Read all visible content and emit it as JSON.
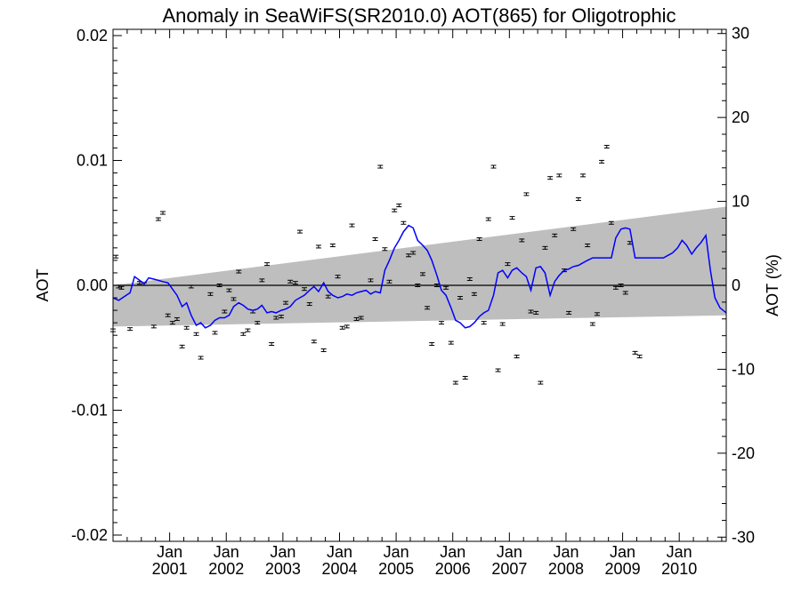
{
  "chart_data": {
    "type": "scatter",
    "title": "Anomaly in SeaWiFS(SR2010.0) AOT(865) for Oligotrophic",
    "ylabel_left": "AOT",
    "ylabel_right": "AOT (%)",
    "xlim": [
      2000.0,
      2010.83
    ],
    "ylim_left": [
      -0.0205,
      0.0205
    ],
    "ylim_right": [
      -30.5,
      30.5
    ],
    "x_ticks": [
      {
        "x": 2001.0,
        "month": "Jan",
        "year": "2001"
      },
      {
        "x": 2002.0,
        "month": "Jan",
        "year": "2002"
      },
      {
        "x": 2003.0,
        "month": "Jan",
        "year": "2003"
      },
      {
        "x": 2004.0,
        "month": "Jan",
        "year": "2004"
      },
      {
        "x": 2005.0,
        "month": "Jan",
        "year": "2005"
      },
      {
        "x": 2006.0,
        "month": "Jan",
        "year": "2006"
      },
      {
        "x": 2007.0,
        "month": "Jan",
        "year": "2007"
      },
      {
        "x": 2008.0,
        "month": "Jan",
        "year": "2008"
      },
      {
        "x": 2009.0,
        "month": "Jan",
        "year": "2009"
      },
      {
        "x": 2010.0,
        "month": "Jan",
        "year": "2010"
      }
    ],
    "y_ticks_left": [
      {
        "v": 0.02,
        "label": "0.02"
      },
      {
        "v": 0.01,
        "label": "0.01"
      },
      {
        "v": 0.0,
        "label": "0.00"
      },
      {
        "v": -0.01,
        "label": "-0.01"
      },
      {
        "v": -0.02,
        "label": "-0.02"
      }
    ],
    "y_ticks_right": [
      {
        "v": 30,
        "label": "30"
      },
      {
        "v": 20,
        "label": "20"
      },
      {
        "v": 10,
        "label": "10"
      },
      {
        "v": 0,
        "label": "0"
      },
      {
        "v": -10,
        "label": "-10"
      },
      {
        "v": -20,
        "label": "-20"
      },
      {
        "v": -30,
        "label": "-30"
      }
    ],
    "trend_band": {
      "x": [
        2000.0,
        2010.83
      ],
      "upper": [
        0.0,
        0.0063
      ],
      "lower": [
        -0.0033,
        -0.0024
      ]
    },
    "zero_line": 0.0,
    "smoothed_series": {
      "color": "#0000ff",
      "points": [
        [
          2000.0,
          -0.001
        ],
        [
          2000.1,
          -0.0012
        ],
        [
          2000.2,
          -0.0009
        ],
        [
          2000.3,
          -0.0006
        ],
        [
          2000.38,
          0.0007
        ],
        [
          2000.47,
          0.0004
        ],
        [
          2000.55,
          0.0001
        ],
        [
          2000.63,
          0.0006
        ],
        [
          2000.72,
          0.0005
        ],
        [
          2000.8,
          0.0004
        ],
        [
          2000.88,
          0.0003
        ],
        [
          2000.97,
          0.0002
        ],
        [
          2001.05,
          -0.0003
        ],
        [
          2001.13,
          -0.0008
        ],
        [
          2001.22,
          -0.0017
        ],
        [
          2001.3,
          -0.0014
        ],
        [
          2001.38,
          -0.0024
        ],
        [
          2001.47,
          -0.0032
        ],
        [
          2001.55,
          -0.003
        ],
        [
          2001.63,
          -0.0034
        ],
        [
          2001.72,
          -0.0032
        ],
        [
          2001.8,
          -0.0028
        ],
        [
          2001.88,
          -0.0026
        ],
        [
          2001.97,
          -0.0026
        ],
        [
          2002.05,
          -0.0024
        ],
        [
          2002.13,
          -0.0017
        ],
        [
          2002.22,
          -0.0014
        ],
        [
          2002.3,
          -0.0016
        ],
        [
          2002.38,
          -0.0019
        ],
        [
          2002.47,
          -0.002
        ],
        [
          2002.55,
          -0.0019
        ],
        [
          2002.63,
          -0.0016
        ],
        [
          2002.72,
          -0.0022
        ],
        [
          2002.8,
          -0.0021
        ],
        [
          2002.88,
          -0.0022
        ],
        [
          2002.97,
          -0.002
        ],
        [
          2003.05,
          -0.0019
        ],
        [
          2003.13,
          -0.0017
        ],
        [
          2003.22,
          -0.0012
        ],
        [
          2003.3,
          -0.001
        ],
        [
          2003.38,
          -0.0008
        ],
        [
          2003.47,
          -0.0004
        ],
        [
          2003.55,
          -0.0001
        ],
        [
          2003.63,
          -0.0005
        ],
        [
          2003.72,
          0.0002
        ],
        [
          2003.8,
          -0.0005
        ],
        [
          2003.88,
          -0.0008
        ],
        [
          2003.97,
          -0.001
        ],
        [
          2004.05,
          -0.0009
        ],
        [
          2004.13,
          -0.0007
        ],
        [
          2004.22,
          -0.0008
        ],
        [
          2004.3,
          -0.0006
        ],
        [
          2004.38,
          -0.0005
        ],
        [
          2004.47,
          -0.0004
        ],
        [
          2004.55,
          -0.0007
        ],
        [
          2004.63,
          -0.0005
        ],
        [
          2004.72,
          -0.0006
        ],
        [
          2004.8,
          0.0012
        ],
        [
          2004.88,
          0.002
        ],
        [
          2004.97,
          0.003
        ],
        [
          2005.05,
          0.0036
        ],
        [
          2005.13,
          0.0043
        ],
        [
          2005.22,
          0.0048
        ],
        [
          2005.3,
          0.0046
        ],
        [
          2005.38,
          0.0036
        ],
        [
          2005.47,
          0.0032
        ],
        [
          2005.55,
          0.0028
        ],
        [
          2005.63,
          0.002
        ],
        [
          2005.72,
          0.0008
        ],
        [
          2005.8,
          -0.0004
        ],
        [
          2005.88,
          -0.0008
        ],
        [
          2005.97,
          -0.0018
        ],
        [
          2006.05,
          -0.0028
        ],
        [
          2006.13,
          -0.003
        ],
        [
          2006.22,
          -0.0034
        ],
        [
          2006.3,
          -0.0033
        ],
        [
          2006.38,
          -0.003
        ],
        [
          2006.47,
          -0.0025
        ],
        [
          2006.55,
          -0.0022
        ],
        [
          2006.63,
          -0.002
        ],
        [
          2006.72,
          -0.0008
        ],
        [
          2006.8,
          0.001
        ],
        [
          2006.88,
          0.0012
        ],
        [
          2006.97,
          0.0006
        ],
        [
          2007.05,
          0.0012
        ],
        [
          2007.13,
          0.0014
        ],
        [
          2007.22,
          0.001
        ],
        [
          2007.3,
          0.0007
        ],
        [
          2007.38,
          -0.0004
        ],
        [
          2007.47,
          0.0014
        ],
        [
          2007.55,
          0.0015
        ],
        [
          2007.63,
          0.001
        ],
        [
          2007.72,
          -0.0008
        ],
        [
          2007.8,
          0.0003
        ],
        [
          2007.88,
          0.0008
        ],
        [
          2007.97,
          0.0012
        ],
        [
          2008.05,
          0.0013
        ],
        [
          2008.13,
          0.0015
        ],
        [
          2008.22,
          0.0016
        ],
        [
          2008.3,
          0.0018
        ],
        [
          2008.38,
          0.002
        ],
        [
          2008.47,
          0.0022
        ],
        [
          2008.55,
          0.0022
        ],
        [
          2008.63,
          0.0022
        ],
        [
          2008.72,
          0.0022
        ],
        [
          2008.8,
          0.0022
        ],
        [
          2008.88,
          0.0038
        ],
        [
          2008.97,
          0.0045
        ],
        [
          2009.05,
          0.0046
        ],
        [
          2009.13,
          0.0045
        ],
        [
          2009.22,
          0.0022
        ],
        [
          2009.3,
          0.0022
        ],
        [
          2009.38,
          0.0022
        ],
        [
          2009.47,
          0.0022
        ],
        [
          2009.55,
          0.0022
        ],
        [
          2009.63,
          0.0022
        ],
        [
          2009.72,
          0.0022
        ],
        [
          2009.8,
          0.0024
        ],
        [
          2009.88,
          0.0026
        ],
        [
          2009.97,
          0.003
        ],
        [
          2010.05,
          0.0036
        ],
        [
          2010.13,
          0.0032
        ],
        [
          2010.22,
          0.0025
        ],
        [
          2010.3,
          0.003
        ],
        [
          2010.38,
          0.0034
        ],
        [
          2010.47,
          0.004
        ],
        [
          2010.55,
          0.0012
        ],
        [
          2010.63,
          -0.001
        ],
        [
          2010.72,
          -0.0018
        ],
        [
          2010.83,
          -0.0022
        ]
      ]
    },
    "monthly_points": [
      [
        2000.0,
        -0.0036
      ],
      [
        2000.05,
        0.0023
      ],
      [
        2000.1,
        -0.0001
      ],
      [
        2000.15,
        -0.0002
      ],
      [
        2000.3,
        -0.0035
      ],
      [
        2000.47,
        0.0002
      ],
      [
        2000.55,
        0.0001
      ],
      [
        2000.8,
        0.0053
      ],
      [
        2000.88,
        0.0058
      ],
      [
        2000.72,
        -0.0033
      ],
      [
        2000.97,
        -0.0024
      ],
      [
        2001.05,
        -0.003
      ],
      [
        2001.13,
        -0.0027
      ],
      [
        2001.22,
        -0.0049
      ],
      [
        2001.3,
        -0.0034
      ],
      [
        2001.38,
        -0.0001
      ],
      [
        2001.47,
        -0.0039
      ],
      [
        2001.55,
        -0.0058
      ],
      [
        2001.72,
        -0.0007
      ],
      [
        2001.8,
        -0.0038
      ],
      [
        2001.88,
        0.0
      ],
      [
        2001.97,
        -0.0021
      ],
      [
        2002.05,
        -0.0004
      ],
      [
        2002.13,
        -0.0011
      ],
      [
        2002.22,
        0.0011
      ],
      [
        2002.3,
        -0.0039
      ],
      [
        2002.38,
        -0.0036
      ],
      [
        2002.47,
        -0.0021
      ],
      [
        2002.55,
        -0.003
      ],
      [
        2002.63,
        0.0004
      ],
      [
        2002.72,
        0.0017
      ],
      [
        2002.8,
        -0.0047
      ],
      [
        2002.88,
        -0.0026
      ],
      [
        2002.97,
        -0.0025
      ],
      [
        2003.05,
        -0.0014
      ],
      [
        2003.13,
        0.0003
      ],
      [
        2003.22,
        0.0002
      ],
      [
        2003.3,
        0.0043
      ],
      [
        2003.38,
        -0.0003
      ],
      [
        2003.47,
        -0.0015
      ],
      [
        2003.55,
        -0.0045
      ],
      [
        2003.63,
        0.0031
      ],
      [
        2003.72,
        -0.0052
      ],
      [
        2003.8,
        -0.0009
      ],
      [
        2003.88,
        0.0032
      ],
      [
        2003.97,
        0.0007
      ],
      [
        2004.05,
        -0.0034
      ],
      [
        2004.13,
        -0.0033
      ],
      [
        2004.22,
        0.0048
      ],
      [
        2004.3,
        -0.0027
      ],
      [
        2004.38,
        -0.0026
      ],
      [
        2004.55,
        0.0004
      ],
      [
        2004.63,
        0.0037
      ],
      [
        2004.72,
        0.0095
      ],
      [
        2004.8,
        0.0029
      ],
      [
        2004.88,
        0.0003
      ],
      [
        2004.97,
        0.006
      ],
      [
        2005.05,
        0.0064
      ],
      [
        2005.13,
        0.005
      ],
      [
        2005.22,
        0.0024
      ],
      [
        2005.3,
        0.0026
      ],
      [
        2005.38,
        0.0
      ],
      [
        2005.47,
        0.0009
      ],
      [
        2005.55,
        -0.0018
      ],
      [
        2005.63,
        -0.0047
      ],
      [
        2005.72,
        0.0
      ],
      [
        2005.8,
        -0.003
      ],
      [
        2005.88,
        -0.0002
      ],
      [
        2005.97,
        -0.0046
      ],
      [
        2006.05,
        -0.0078
      ],
      [
        2006.13,
        -0.001
      ],
      [
        2006.22,
        -0.0074
      ],
      [
        2006.3,
        0.0005
      ],
      [
        2006.38,
        -0.0007
      ],
      [
        2006.47,
        0.0037
      ],
      [
        2006.55,
        -0.003
      ],
      [
        2006.63,
        0.0053
      ],
      [
        2006.72,
        0.0095
      ],
      [
        2006.8,
        -0.0068
      ],
      [
        2006.88,
        -0.0031
      ],
      [
        2006.97,
        0.0017
      ],
      [
        2007.05,
        0.0054
      ],
      [
        2007.13,
        -0.0057
      ],
      [
        2007.22,
        0.0036
      ],
      [
        2007.3,
        0.0073
      ],
      [
        2007.38,
        -0.0021
      ],
      [
        2007.47,
        -0.0022
      ],
      [
        2007.55,
        -0.0078
      ],
      [
        2007.63,
        0.003
      ],
      [
        2007.72,
        0.0086
      ],
      [
        2007.8,
        0.004
      ],
      [
        2007.88,
        0.0088
      ],
      [
        2007.97,
        0.0012
      ],
      [
        2008.05,
        -0.0022
      ],
      [
        2008.13,
        0.0045
      ],
      [
        2008.22,
        0.0069
      ],
      [
        2008.3,
        0.0088
      ],
      [
        2008.38,
        0.0032
      ],
      [
        2008.47,
        -0.0031
      ],
      [
        2008.55,
        -0.0023
      ],
      [
        2008.63,
        0.0099
      ],
      [
        2008.72,
        0.0111
      ],
      [
        2008.8,
        0.005
      ],
      [
        2008.88,
        -0.0002
      ],
      [
        2008.97,
        0.0
      ],
      [
        2009.05,
        -0.0006
      ],
      [
        2009.13,
        0.0034
      ],
      [
        2009.22,
        -0.0054
      ],
      [
        2009.3,
        -0.0057
      ]
    ]
  }
}
